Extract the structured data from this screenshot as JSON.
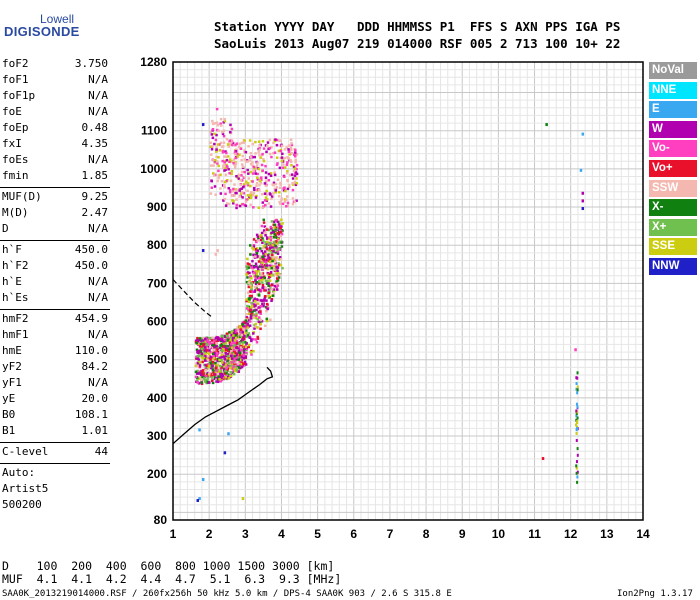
{
  "logo": {
    "top": "Lowell",
    "bottom": "DIGISONDE"
  },
  "header": {
    "line1": "Station YYYY DAY   DDD HHMMSS P1  FFS S AXN PPS IGA PS",
    "line2": "SaoLuis 2013 Aug07 219 014000 RSF 005 2 713 100 10+ 22"
  },
  "params_group1": [
    {
      "name": "foF2",
      "value": "3.750"
    },
    {
      "name": "foF1",
      "value": "N/A"
    },
    {
      "name": "foF1p",
      "value": "N/A"
    },
    {
      "name": "foE",
      "value": "N/A"
    },
    {
      "name": "foEp",
      "value": "0.48"
    },
    {
      "name": "fxI",
      "value": "4.35"
    },
    {
      "name": "foEs",
      "value": "N/A"
    },
    {
      "name": "fmin",
      "value": "1.85"
    }
  ],
  "params_group2": [
    {
      "name": "MUF(D)",
      "value": "9.25"
    },
    {
      "name": "M(D)",
      "value": "2.47"
    },
    {
      "name": "D",
      "value": "N/A"
    }
  ],
  "params_group3": [
    {
      "name": "h`F",
      "value": "450.0"
    },
    {
      "name": "h`F2",
      "value": "450.0"
    },
    {
      "name": "h`E",
      "value": "N/A"
    },
    {
      "name": "h`Es",
      "value": "N/A"
    }
  ],
  "params_group4": [
    {
      "name": "hmF2",
      "value": "454.9"
    },
    {
      "name": "hmF1",
      "value": "N/A"
    },
    {
      "name": "hmE",
      "value": "110.0"
    },
    {
      "name": "yF2",
      "value": "84.2"
    },
    {
      "name": "yF1",
      "value": "N/A"
    },
    {
      "name": "yE",
      "value": "20.0"
    },
    {
      "name": "B0",
      "value": "108.1"
    },
    {
      "name": "B1",
      "value": "1.01"
    }
  ],
  "clevel": {
    "name": "C-level",
    "value": "44"
  },
  "auto": {
    "line1": "Auto:",
    "line2": "Artist5",
    "line3": "500200"
  },
  "legend": [
    {
      "label": "NoVal",
      "color": "#9a9a9a"
    },
    {
      "label": "NNE",
      "color": "#00e5ff"
    },
    {
      "label": "E",
      "color": "#3aa8f0"
    },
    {
      "label": "W",
      "color": "#b000b0"
    },
    {
      "label": "Vo-",
      "color": "#ff3fbf"
    },
    {
      "label": "Vo+",
      "color": "#e8102a"
    },
    {
      "label": "SSW",
      "color": "#f4b8b0"
    },
    {
      "label": "X-",
      "color": "#108010"
    },
    {
      "label": "X+",
      "color": "#70c050"
    },
    {
      "label": "SSE",
      "color": "#cccc10"
    },
    {
      "label": "NNW",
      "color": "#2020c8"
    }
  ],
  "dist_table": {
    "row1": "D    100  200  400  600  800 1000 1500 3000 [km]",
    "row2": "MUF  4.1  4.1  4.2  4.4  4.7  5.1  6.3  9.3 [MHz]"
  },
  "footer": {
    "left": "SAA0K_2013219014000.RSF / 260fx256h 50 kHz 5.0 km / DPS-4 SAA0K 903 / 2.6 S 315.8 E",
    "right": "Ion2Png 1.3.17"
  },
  "chart_data": {
    "type": "scatter",
    "xlim": [
      1,
      14
    ],
    "ylim": [
      80,
      1280
    ],
    "x_ticks": [
      1,
      2,
      3,
      4,
      5,
      6,
      7,
      8,
      9,
      10,
      11,
      12,
      13,
      14
    ],
    "y_ticks": [
      80,
      200,
      300,
      400,
      500,
      600,
      700,
      800,
      900,
      1000,
      1100,
      1280
    ],
    "grid": true,
    "ionogram_clusters": [
      {
        "region": "F-trace main",
        "x_range": [
          1.5,
          4.2
        ],
        "y_range": [
          440,
          860
        ]
      },
      {
        "region": "second-hop",
        "x_range": [
          1.9,
          4.4
        ],
        "y_range": [
          900,
          1180
        ]
      },
      {
        "region": "column near 12.1 MHz",
        "x_range": [
          12.1,
          12.3
        ],
        "y_range": [
          180,
          1100
        ]
      }
    ],
    "profile_curve": {
      "x": [
        1,
        1.3,
        1.6,
        1.9,
        2.2,
        2.5,
        2.8,
        3.1,
        3.4,
        3.6,
        3.75,
        3.7,
        3.6
      ],
      "y": [
        280,
        305,
        330,
        350,
        365,
        380,
        395,
        415,
        435,
        450,
        455,
        470,
        480
      ]
    },
    "dashed_curve": {
      "x": [
        1,
        1.3,
        1.6,
        1.9,
        2.1
      ],
      "y": [
        710,
        680,
        650,
        625,
        610
      ]
    }
  }
}
